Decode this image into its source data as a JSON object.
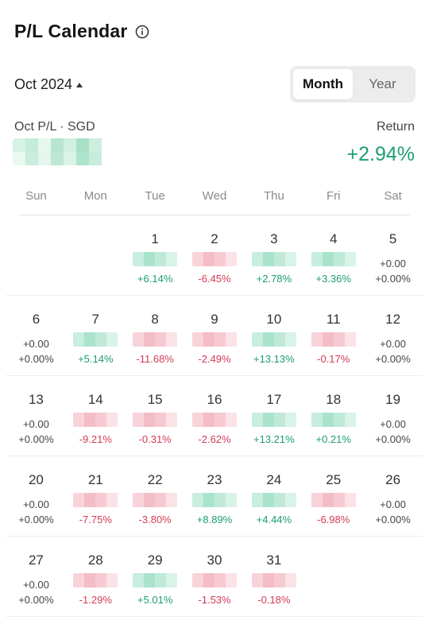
{
  "header": {
    "title": "P/L Calendar",
    "info_icon": "info-circle-icon"
  },
  "period": {
    "selected": "Oct 2024",
    "caret_icon": "caret-up-icon"
  },
  "view_toggle": {
    "options": [
      "Month",
      "Year"
    ],
    "selected": "Month"
  },
  "summary": {
    "pl_label": "Oct P/L · SGD",
    "return_label": "Return",
    "return_value": "+2.94%",
    "positive_color": "#1c9e6f",
    "negative_color": "#d23b56"
  },
  "weekdays": [
    "Sun",
    "Mon",
    "Tue",
    "Wed",
    "Thu",
    "Fri",
    "Sat"
  ],
  "weeks": [
    [
      null,
      null,
      {
        "day": "1",
        "pct": "+6.14%",
        "trend": "pos",
        "abs_hidden": true
      },
      {
        "day": "2",
        "pct": "-6.45%",
        "trend": "neg",
        "abs_hidden": true
      },
      {
        "day": "3",
        "pct": "+2.78%",
        "trend": "pos",
        "abs_hidden": true
      },
      {
        "day": "4",
        "pct": "+3.36%",
        "trend": "pos",
        "abs_hidden": true
      },
      {
        "day": "5",
        "abs": "+0.00",
        "pct": "+0.00%",
        "trend": "flat"
      }
    ],
    [
      {
        "day": "6",
        "abs": "+0.00",
        "pct": "+0.00%",
        "trend": "flat"
      },
      {
        "day": "7",
        "pct": "+5.14%",
        "trend": "pos",
        "abs_hidden": true
      },
      {
        "day": "8",
        "pct": "-11.68%",
        "trend": "neg",
        "abs_hidden": true
      },
      {
        "day": "9",
        "pct": "-2.49%",
        "trend": "neg",
        "abs_hidden": true
      },
      {
        "day": "10",
        "pct": "+13.13%",
        "trend": "pos",
        "abs_hidden": true
      },
      {
        "day": "11",
        "pct": "-0.17%",
        "trend": "neg",
        "abs_hidden": true
      },
      {
        "day": "12",
        "abs": "+0.00",
        "pct": "+0.00%",
        "trend": "flat"
      }
    ],
    [
      {
        "day": "13",
        "abs": "+0.00",
        "pct": "+0.00%",
        "trend": "flat"
      },
      {
        "day": "14",
        "pct": "-9.21%",
        "trend": "neg",
        "abs_hidden": true
      },
      {
        "day": "15",
        "pct": "-0.31%",
        "trend": "neg",
        "abs_hidden": true
      },
      {
        "day": "16",
        "pct": "-2.62%",
        "trend": "neg",
        "abs_hidden": true
      },
      {
        "day": "17",
        "pct": "+13.21%",
        "trend": "pos",
        "abs_hidden": true
      },
      {
        "day": "18",
        "pct": "+0.21%",
        "trend": "pos",
        "abs_hidden": true
      },
      {
        "day": "19",
        "abs": "+0.00",
        "pct": "+0.00%",
        "trend": "flat"
      }
    ],
    [
      {
        "day": "20",
        "abs": "+0.00",
        "pct": "+0.00%",
        "trend": "flat"
      },
      {
        "day": "21",
        "pct": "-7.75%",
        "trend": "neg",
        "abs_hidden": true
      },
      {
        "day": "22",
        "pct": "-3.80%",
        "trend": "neg",
        "abs_hidden": true
      },
      {
        "day": "23",
        "pct": "+8.89%",
        "trend": "pos",
        "abs_hidden": true
      },
      {
        "day": "24",
        "pct": "+4.44%",
        "trend": "pos",
        "abs_hidden": true
      },
      {
        "day": "25",
        "pct": "-6.98%",
        "trend": "neg",
        "abs_hidden": true
      },
      {
        "day": "26",
        "abs": "+0.00",
        "pct": "+0.00%",
        "trend": "flat"
      }
    ],
    [
      {
        "day": "27",
        "abs": "+0.00",
        "pct": "+0.00%",
        "trend": "flat"
      },
      {
        "day": "28",
        "pct": "-1.29%",
        "trend": "neg",
        "abs_hidden": true
      },
      {
        "day": "29",
        "pct": "+5.01%",
        "trend": "pos",
        "abs_hidden": true
      },
      {
        "day": "30",
        "pct": "-1.53%",
        "trend": "neg",
        "abs_hidden": true
      },
      {
        "day": "31",
        "pct": "-0.18%",
        "trend": "neg",
        "abs_hidden": true
      },
      null,
      null
    ]
  ]
}
